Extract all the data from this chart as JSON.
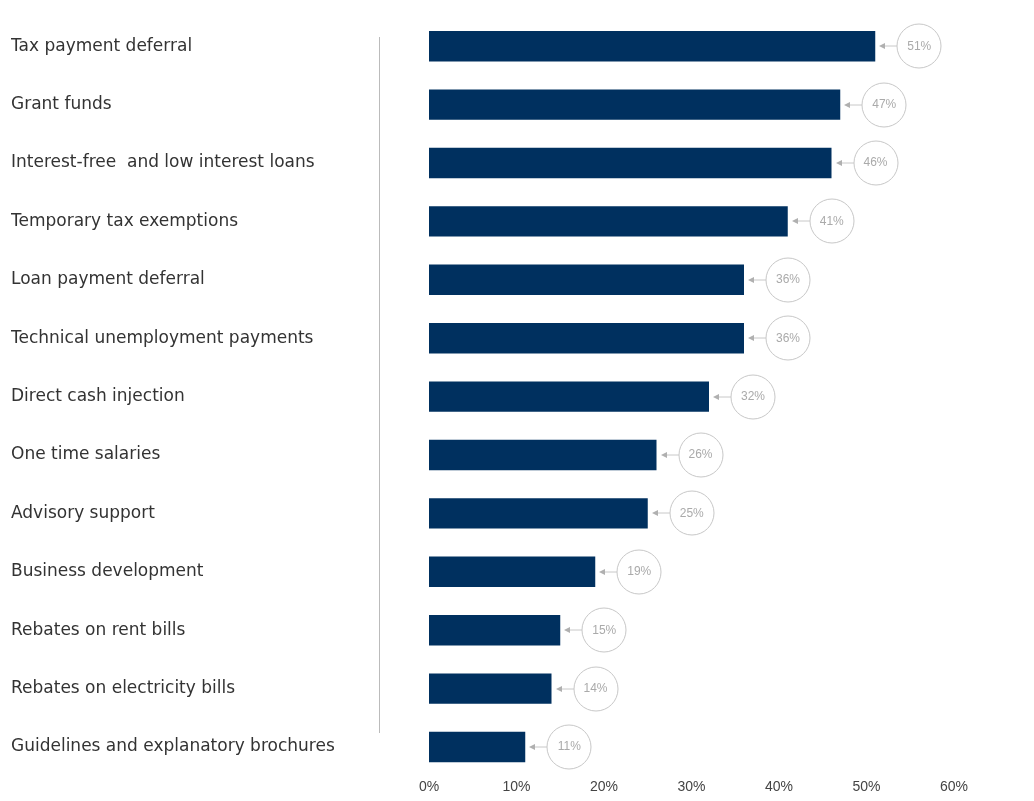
{
  "chart_data": {
    "type": "bar",
    "orientation": "horizontal",
    "categories": [
      "Tax payment deferral",
      "Grant funds",
      "Interest-free  and low interest loans",
      "Temporary tax exemptions",
      "Loan payment deferral",
      "Technical unemployment payments",
      "Direct cash injection",
      "One time salaries",
      "Advisory support",
      "Business development",
      "Rebates on rent bills",
      "Rebates on electricity bills",
      "Guidelines and explanatory brochures"
    ],
    "values": [
      51,
      47,
      46,
      41,
      36,
      36,
      32,
      26,
      25,
      19,
      15,
      14,
      11
    ],
    "value_labels": [
      "51%",
      "47%",
      "46%",
      "41%",
      "36%",
      "36%",
      "32%",
      "26%",
      "25%",
      "19%",
      "15%",
      "14%",
      "11%"
    ],
    "color": "#00305f",
    "xlim": [
      0,
      60
    ],
    "xticks": [
      {
        "value": 0,
        "label": "0%"
      },
      {
        "value": 10,
        "label": "10%"
      },
      {
        "value": 20,
        "label": "20%"
      },
      {
        "value": 30,
        "label": "30%"
      },
      {
        "value": 40,
        "label": "40%"
      },
      {
        "value": 50,
        "label": "50%"
      },
      {
        "value": 60,
        "label": "60%"
      }
    ],
    "grid": false,
    "legend": false
  }
}
